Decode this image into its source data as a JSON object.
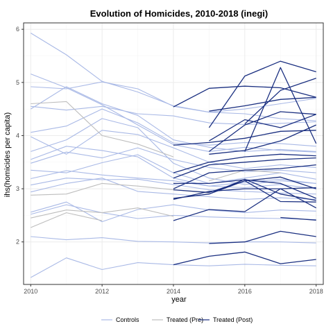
{
  "chart_data": {
    "type": "line",
    "title": "Evolution of Homicides, 2010-2018 (inegi)",
    "xlabel": "year",
    "ylabel": "ihs(homicides per capita)",
    "xlim": [
      2009.8,
      2018.2
    ],
    "ylim": [
      1.2,
      6.12
    ],
    "x_ticks": [
      2010,
      2012,
      2014,
      2016,
      2018
    ],
    "y_ticks": [
      2,
      3,
      4,
      5,
      6
    ],
    "grid": true,
    "legend_position": "bottom",
    "legend": [
      {
        "label": "Controls",
        "color": "#a9b9e6"
      },
      {
        "label": "Treated (Pre)",
        "color": "#bdbdbd"
      },
      {
        "label": "Treated (Post)",
        "color": "#1a2f80"
      }
    ],
    "colors": {
      "controls": "#a9b9e6",
      "treated_pre": "#bdbdbd",
      "treated_post": "#1a2f80",
      "grid_major": "#ebebeb",
      "grid_minor": "#f5f5f5",
      "frame": "#333333"
    },
    "series": [
      {
        "group": "controls",
        "x": [
          2010,
          2011,
          2012,
          2013,
          2014,
          2015,
          2016,
          2017,
          2018
        ],
        "values": [
          5.93,
          5.52,
          5.02,
          4.82,
          4.56,
          4.44,
          4.41,
          4.32,
          4.28
        ]
      },
      {
        "group": "controls",
        "x": [
          2010,
          2011,
          2012,
          2013,
          2014,
          2015,
          2016,
          2017,
          2018
        ],
        "values": [
          5.16,
          4.9,
          4.58,
          4.2,
          3.83,
          3.7,
          3.78,
          3.72,
          3.69
        ]
      },
      {
        "group": "controls",
        "x": [
          2010,
          2011,
          2012,
          2013,
          2014,
          2015,
          2016,
          2017,
          2018
        ],
        "values": [
          4.92,
          4.88,
          5.01,
          4.88,
          4.55,
          4.44,
          4.5,
          4.6,
          4.7
        ]
      },
      {
        "group": "controls",
        "x": [
          2010,
          2011,
          2012,
          2013,
          2014,
          2015,
          2016,
          2017,
          2018
        ],
        "values": [
          4.55,
          4.48,
          4.55,
          4.41,
          4.37,
          4.24,
          4.21,
          4.23,
          4.26
        ]
      },
      {
        "group": "controls",
        "x": [
          2010,
          2011,
          2012,
          2013,
          2014,
          2015,
          2016,
          2017,
          2018
        ],
        "values": [
          4.06,
          4.18,
          4.5,
          4.24,
          3.86,
          3.82,
          3.87,
          3.85,
          3.8
        ]
      },
      {
        "group": "controls",
        "x": [
          2010,
          2011,
          2012,
          2013,
          2014,
          2015,
          2016,
          2017,
          2018
        ],
        "values": [
          3.98,
          3.65,
          4.1,
          4.02,
          3.77,
          3.5,
          3.38,
          3.45,
          3.4
        ]
      },
      {
        "group": "controls",
        "x": [
          2010,
          2011,
          2012,
          2013,
          2014,
          2015,
          2016,
          2017,
          2018
        ],
        "values": [
          3.7,
          3.92,
          4.32,
          4.15,
          3.48,
          3.2,
          3.08,
          3.15,
          3.1
        ]
      },
      {
        "group": "controls",
        "x": [
          2010,
          2011,
          2012,
          2013,
          2014,
          2015,
          2016,
          2017,
          2018
        ],
        "values": [
          3.48,
          3.69,
          3.58,
          3.77,
          3.55,
          3.4,
          3.32,
          3.35,
          3.3
        ]
      },
      {
        "group": "controls",
        "x": [
          2010,
          2011,
          2012,
          2013,
          2014,
          2015,
          2016,
          2017,
          2018
        ],
        "values": [
          3.35,
          3.3,
          3.49,
          3.64,
          3.3,
          3.1,
          3.2,
          3.3,
          3.18
        ]
      },
      {
        "group": "controls",
        "x": [
          2010,
          2011,
          2012,
          2013,
          2014,
          2015,
          2016,
          2017,
          2018
        ],
        "values": [
          3.19,
          3.34,
          3.26,
          3.2,
          3.15,
          3.05,
          3.02,
          3.08,
          3.0
        ]
      },
      {
        "group": "controls",
        "x": [
          2010,
          2011,
          2012,
          2013,
          2014,
          2015,
          2016,
          2017,
          2018
        ],
        "values": [
          3.07,
          3.2,
          3.17,
          3.18,
          3.08,
          2.98,
          2.95,
          2.92,
          2.9
        ]
      },
      {
        "group": "controls",
        "x": [
          2010,
          2011,
          2012,
          2013,
          2014,
          2015,
          2016,
          2017,
          2018
        ],
        "values": [
          2.94,
          3.1,
          3.2,
          2.95,
          2.9,
          2.85,
          2.8,
          2.83,
          2.8
        ]
      },
      {
        "group": "controls",
        "x": [
          2010,
          2011,
          2012,
          2013,
          2014,
          2015,
          2016,
          2017,
          2018
        ],
        "values": [
          2.56,
          2.75,
          2.38,
          2.61,
          2.7,
          2.6,
          2.55,
          2.6,
          2.58
        ]
      },
      {
        "group": "controls",
        "x": [
          2010,
          2011,
          2012,
          2013,
          2014,
          2015,
          2016,
          2017,
          2018
        ],
        "values": [
          2.52,
          2.7,
          2.55,
          2.44,
          2.5,
          2.47,
          2.45,
          2.44,
          2.42
        ]
      },
      {
        "group": "controls",
        "x": [
          2010,
          2011,
          2012,
          2013,
          2014,
          2015,
          2016,
          2017,
          2018
        ],
        "values": [
          2.1,
          2.04,
          2.08,
          2.01,
          2.0,
          1.98,
          2.0,
          2.0,
          1.98
        ]
      },
      {
        "group": "controls",
        "x": [
          2010,
          2011,
          2012,
          2013,
          2014,
          2015,
          2016,
          2017,
          2018
        ],
        "values": [
          1.33,
          1.7,
          1.48,
          1.61,
          1.57,
          1.55,
          1.58,
          1.56,
          1.55
        ]
      },
      {
        "group": "controls",
        "x": [
          2010,
          2011,
          2012,
          2013,
          2014,
          2015,
          2016,
          2017,
          2018
        ],
        "values": [
          4.5,
          4.92,
          4.6,
          4.38,
          3.92,
          3.78,
          3.7,
          3.74,
          3.7
        ]
      },
      {
        "group": "controls",
        "x": [
          2010,
          2011,
          2012,
          2013,
          2014,
          2015,
          2016,
          2017,
          2018
        ],
        "values": [
          3.55,
          3.8,
          3.72,
          3.6,
          3.2,
          3.05,
          3.12,
          3.18,
          3.1
        ]
      },
      {
        "group": "treated_pre",
        "x": [
          2010,
          2011,
          2012,
          2013,
          2014
        ],
        "values": [
          4.6,
          4.64,
          4.0,
          3.84,
          3.6
        ]
      },
      {
        "group": "treated_pre",
        "x": [
          2010,
          2011,
          2012,
          2013,
          2014
        ],
        "values": [
          2.45,
          2.6,
          2.55,
          2.64,
          2.48
        ]
      },
      {
        "group": "treated_pre",
        "x": [
          2010,
          2011,
          2012
        ],
        "values": [
          2.27,
          2.55,
          2.4
        ]
      },
      {
        "group": "treated_pre",
        "x": [
          2015,
          2016,
          2017
        ],
        "values": [
          3.15,
          3.35,
          3.3
        ]
      },
      {
        "group": "treated_pre",
        "x": [
          2010,
          2011,
          2012,
          2013,
          2014,
          2015
        ],
        "values": [
          2.88,
          2.9,
          3.1,
          3.05,
          2.98,
          2.92
        ]
      },
      {
        "group": "treated_post",
        "x": [
          2014,
          2015,
          2016,
          2017,
          2018
        ],
        "values": [
          4.54,
          4.89,
          4.93,
          4.9,
          4.72
        ]
      },
      {
        "group": "treated_post",
        "x": [
          2015,
          2016,
          2017,
          2018
        ],
        "values": [
          4.46,
          4.56,
          4.68,
          4.72
        ]
      },
      {
        "group": "treated_post",
        "x": [
          2015,
          2016,
          2017,
          2018
        ],
        "values": [
          4.15,
          5.12,
          5.4,
          5.2
        ]
      },
      {
        "group": "treated_post",
        "x": [
          2015,
          2016,
          2017,
          2018
        ],
        "values": [
          3.7,
          4.2,
          4.45,
          4.4
        ]
      },
      {
        "group": "treated_post",
        "x": [
          2014,
          2015,
          2016,
          2017,
          2018
        ],
        "values": [
          3.82,
          3.87,
          3.95,
          4.08,
          4.1
        ]
      },
      {
        "group": "treated_post",
        "x": [
          2016,
          2017,
          2018
        ],
        "values": [
          4.22,
          4.85,
          5.08
        ]
      },
      {
        "group": "treated_post",
        "x": [
          2015,
          2016,
          2017,
          2018
        ],
        "values": [
          3.65,
          3.72,
          3.9,
          4.2
        ]
      },
      {
        "group": "treated_post",
        "x": [
          2014,
          2015,
          2016,
          2017,
          2018
        ],
        "values": [
          3.3,
          3.5,
          3.6,
          3.65,
          3.62
        ]
      },
      {
        "group": "treated_post",
        "x": [
          2014,
          2015,
          2016,
          2017,
          2018
        ],
        "values": [
          3.2,
          3.45,
          3.5,
          3.55,
          3.58
        ]
      },
      {
        "group": "treated_post",
        "x": [
          2014,
          2015,
          2016,
          2017,
          2018
        ],
        "values": [
          3.0,
          3.3,
          3.35,
          3.38,
          3.45
        ]
      },
      {
        "group": "treated_post",
        "x": [
          2015,
          2016,
          2017,
          2018
        ],
        "values": [
          3.9,
          4.3,
          4.15,
          4.4
        ]
      },
      {
        "group": "treated_post",
        "x": [
          2016,
          2017,
          2018
        ],
        "values": [
          3.7,
          5.28,
          3.85
        ]
      },
      {
        "group": "treated_post",
        "x": [
          2014,
          2015,
          2016,
          2017,
          2018
        ],
        "values": [
          3.1,
          3.1,
          3.17,
          3.1,
          2.82
        ]
      },
      {
        "group": "treated_post",
        "x": [
          2014,
          2015,
          2016,
          2017,
          2018
        ],
        "values": [
          2.98,
          2.93,
          3.15,
          3.22,
          3.0
        ]
      },
      {
        "group": "treated_post",
        "x": [
          2014,
          2015,
          2016,
          2017,
          2018
        ],
        "values": [
          2.82,
          2.9,
          3.18,
          2.9,
          2.78
        ]
      },
      {
        "group": "treated_post",
        "x": [
          2014,
          2015,
          2016,
          2017,
          2018
        ],
        "values": [
          2.8,
          2.95,
          3.0,
          3.0,
          3.02
        ]
      },
      {
        "group": "treated_post",
        "x": [
          2015,
          2016,
          2017,
          2018
        ],
        "values": [
          2.9,
          3.15,
          2.76,
          2.75
        ]
      },
      {
        "group": "treated_post",
        "x": [
          2014,
          2015,
          2016,
          2017,
          2018
        ],
        "values": [
          2.4,
          2.61,
          2.57,
          3.0,
          2.64
        ]
      },
      {
        "group": "treated_post",
        "x": [
          2017,
          2018
        ],
        "values": [
          2.46,
          2.41
        ]
      },
      {
        "group": "treated_post",
        "x": [
          2015,
          2016,
          2017,
          2018
        ],
        "values": [
          1.97,
          2.0,
          2.2,
          2.1
        ]
      },
      {
        "group": "treated_post",
        "x": [
          2014,
          2015,
          2016,
          2017,
          2018
        ],
        "values": [
          1.57,
          1.73,
          1.81,
          1.59,
          1.67
        ]
      }
    ]
  }
}
